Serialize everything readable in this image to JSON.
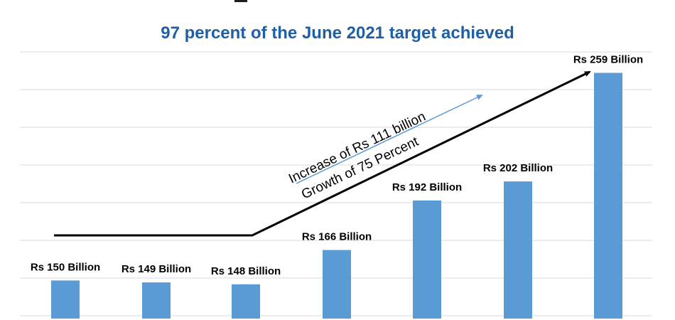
{
  "chart_data": {
    "type": "bar",
    "subtitle": "97 percent of the June 2021 target achieved",
    "values": [
      150,
      149,
      148,
      166,
      192,
      202,
      259
    ],
    "data_labels": [
      "Rs 150 Billion",
      "Rs 149 Billion",
      "Rs 148 Billion",
      "Rs 166 Billion",
      "Rs 192 Billion",
      "Rs 202 Billion",
      "Rs 259 Billion"
    ],
    "ylim": [
      130,
      270
    ],
    "grid": true,
    "bar_color": "#5b9bd5",
    "annotations": {
      "increase": "Increase of Rs 111 billion",
      "growth": "Growth of 75 Percent"
    }
  }
}
